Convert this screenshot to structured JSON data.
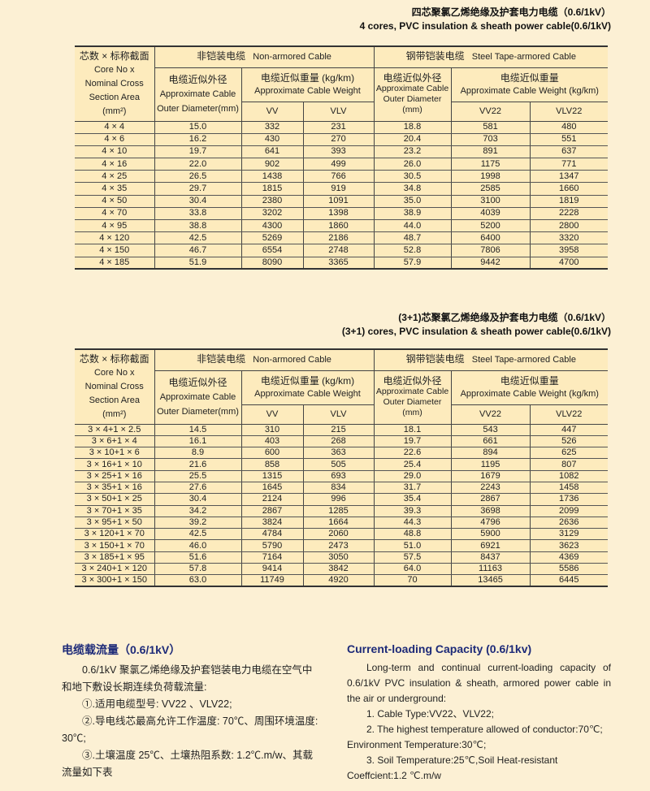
{
  "table1": {
    "title_zh": "四芯聚氯乙烯绝缘及护套电力电缆（0.6/1kV）",
    "title_en": "4 cores, PVC insulation & sheath power cable(0.6/1kV)",
    "header": {
      "core_zh": "芯数 × 标称截面",
      "core_en1": "Core No x",
      "core_en2": "Nominal Cross",
      "core_en3": "Section Area",
      "core_unit": "(mm²)",
      "non_armored_zh": "非铠装电缆",
      "non_armored_en": "Non-armored Cable",
      "armored_zh": "钢带铠装电缆",
      "armored_en": "Steel Tape-armored Cable",
      "od_zh": "电缆近似外径",
      "od_en1": "Approximate Cable",
      "od_en2": "Outer Diameter(mm)",
      "wt_zh": "电缆近似重量 (kg/km)",
      "wt_en": "Approximate Cable Weight",
      "aod_zh": "电缆近似外径",
      "aod_en1": "Approximate Cable",
      "aod_en2": "Outer Diameter",
      "aod_en3": "(mm)",
      "awt_zh": "电缆近似重量",
      "awt_en": "Approximate Cable Weight  (kg/km)",
      "vv": "VV",
      "vlv": "VLV",
      "vv22": "VV22",
      "vlv22": "VLV22"
    },
    "rows": [
      [
        "4 × 4",
        "15.0",
        "332",
        "231",
        "18.8",
        "581",
        "480"
      ],
      [
        "4 × 6",
        "16.2",
        "430",
        "270",
        "20.4",
        "703",
        "551"
      ],
      [
        "4 × 10",
        "19.7",
        "641",
        "393",
        "23.2",
        "891",
        "637"
      ],
      [
        "4 × 16",
        "22.0",
        "902",
        "499",
        "26.0",
        "1175",
        "771"
      ],
      [
        "4 × 25",
        "26.5",
        "1438",
        "766",
        "30.5",
        "1998",
        "1347"
      ],
      [
        "4 × 35",
        "29.7",
        "1815",
        "919",
        "34.8",
        "2585",
        "1660"
      ],
      [
        "4 × 50",
        "30.4",
        "2380",
        "1091",
        "35.0",
        "3100",
        "1819"
      ],
      [
        "4 × 70",
        "33.8",
        "3202",
        "1398",
        "38.9",
        "4039",
        "2228"
      ],
      [
        "4 × 95",
        "38.8",
        "4300",
        "1860",
        "44.0",
        "5200",
        "2800"
      ],
      [
        "4 × 120",
        "42.5",
        "5269",
        "2186",
        "48.7",
        "6400",
        "3320"
      ],
      [
        "4 × 150",
        "46.7",
        "6554",
        "2748",
        "52.8",
        "7806",
        "3958"
      ],
      [
        "4 × 185",
        "51.9",
        "8090",
        "3365",
        "57.9",
        "9442",
        "4700"
      ]
    ]
  },
  "table2": {
    "title_zh": "(3+1)芯聚氯乙烯绝缘及护套电力电缆（0.6/1kV）",
    "title_en": "(3+1) cores, PVC insulation & sheath power cable(0.6/1kV)",
    "header": {
      "core_zh": "芯数 × 标称截面",
      "core_en1": "Core No x",
      "core_en2": "Nominal Cross",
      "core_en3": "Section Area",
      "core_unit": "(mm²)",
      "non_armored_zh": "非铠装电缆",
      "non_armored_en": "Non-armored Cable",
      "armored_zh": "钢带铠装电缆",
      "armored_en": "Steel Tape-armored Cable",
      "od_zh": "电缆近似外径",
      "od_en1": "Approximate Cable",
      "od_en2": "Outer Diameter(mm)",
      "wt_zh": "电缆近似重量 (kg/km)",
      "wt_en": "Approximate Cable Weight",
      "aod_zh": "电缆近似外径",
      "aod_en1": "Approximate Cable",
      "aod_en2": "Outer Diameter",
      "aod_en3": "(mm)",
      "awt_zh": "电缆近似重量",
      "awt_en": "Approximate Cable Weight  (kg/km)",
      "vv": "VV",
      "vlv": "VLV",
      "vv22": "VV22",
      "vlv22": "VLV22"
    },
    "rows": [
      [
        "3 × 4+1 × 2.5",
        "14.5",
        "310",
        "215",
        "18.1",
        "543",
        "447"
      ],
      [
        "3 × 6+1 × 4",
        "16.1",
        "403",
        "268",
        "19.7",
        "661",
        "526"
      ],
      [
        "3 × 10+1 × 6",
        "8.9",
        "600",
        "363",
        "22.6",
        "894",
        "625"
      ],
      [
        "3 × 16+1 × 10",
        "21.6",
        "858",
        "505",
        "25.4",
        "1195",
        "807"
      ],
      [
        "3 × 25+1 × 16",
        "25.5",
        "1315",
        "693",
        "29.0",
        "1679",
        "1082"
      ],
      [
        "3 × 35+1 × 16",
        "27.6",
        "1645",
        "834",
        "31.7",
        "2243",
        "1458"
      ],
      [
        "3 × 50+1 × 25",
        "30.4",
        "2124",
        "996",
        "35.4",
        "2867",
        "1736"
      ],
      [
        "3 × 70+1 × 35",
        "34.2",
        "2867",
        "1285",
        "39.3",
        "3698",
        "2099"
      ],
      [
        "3 × 95+1 × 50",
        "39.2",
        "3824",
        "1664",
        "44.3",
        "4796",
        "2636"
      ],
      [
        "3 × 120+1 × 70",
        "42.5",
        "4784",
        "2060",
        "48.8",
        "5900",
        "3129"
      ],
      [
        "3 × 150+1 × 70",
        "46.0",
        "5790",
        "2473",
        "51.0",
        "6921",
        "3623"
      ],
      [
        "3 × 185+1 × 95",
        "51.6",
        "7164",
        "3050",
        "57.5",
        "8437",
        "4369"
      ],
      [
        "3 × 240+1 × 120",
        "57.8",
        "9414",
        "3842",
        "64.0",
        "11163",
        "5586"
      ],
      [
        "3 × 300+1 × 150",
        "63.0",
        "11749",
        "4920",
        "70",
        "13465",
        "6445"
      ]
    ]
  },
  "zh_section": {
    "heading": "电缆载流量（0.6/1kV）",
    "p1": "0.6/1kV 聚氯乙烯绝缘及护套铠装电力电缆在空气中和地下敷设长期连续负荷载流量:",
    "p2": "①.适用电缆型号: VV22 、VLV22;",
    "p3": "②.导电线芯最高允许工作温度: 70℃、周围环境温度: 30℃;",
    "p4": "③.土壤温度 25℃、土壤热阻系数: 1.2℃.m/w、其载流量如下表"
  },
  "en_section": {
    "heading": "Current-loading Capacity (0.6/1kv)",
    "p1": "Long-term and continual current-loading  capacity of 0.6/1kV PVC insulation & sheath, armored power cable in the air or underground:",
    "p2": "1.  Cable Type:VV22、VLV22;",
    "p3": "2.  The highest temperature allowed of conductor:70℃; Environment Temperature:30℃;",
    "p4": "3.  Soil Temperature:25℃,Soil Heat-resistant Coeffcient:1.2 ℃.m/w"
  }
}
